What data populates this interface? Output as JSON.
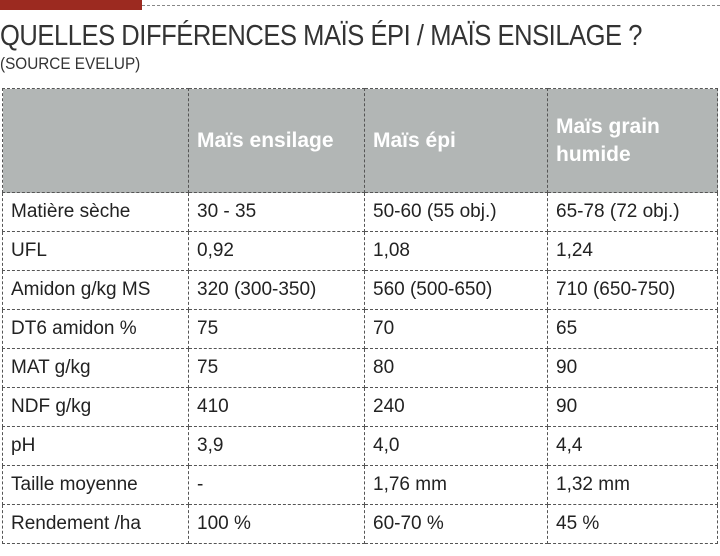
{
  "title": "QUELLES DIFFÉRENCES MAÏS ÉPI / MAÏS ENSILAGE ?",
  "subtitle": "(SOURCE EVELUP)",
  "accent_color": "#9c2a20",
  "table": {
    "headers": [
      "",
      "Maïs ensilage",
      "Maïs épi",
      "Maïs grain humide"
    ],
    "rows": [
      [
        "Matière sèche",
        "30 - 35",
        "50-60 (55 obj.)",
        "65-78 (72 obj.)"
      ],
      [
        "UFL",
        "0,92",
        "1,08",
        "1,24"
      ],
      [
        "Amidon g/kg MS",
        "320 (300-350)",
        "560 (500-650)",
        "710 (650-750)"
      ],
      [
        "DT6 amidon %",
        "75",
        "70",
        "65"
      ],
      [
        "MAT g/kg",
        "75",
        "80",
        "90"
      ],
      [
        "NDF g/kg",
        "410",
        "240",
        "90"
      ],
      [
        "pH",
        "3,9",
        "4,0",
        "4,4"
      ],
      [
        "Taille moyenne",
        "-",
        "1,76 mm",
        "1,32 mm"
      ],
      [
        "Rendement /ha",
        "100 %",
        "60-70 %",
        "45 %"
      ]
    ]
  }
}
